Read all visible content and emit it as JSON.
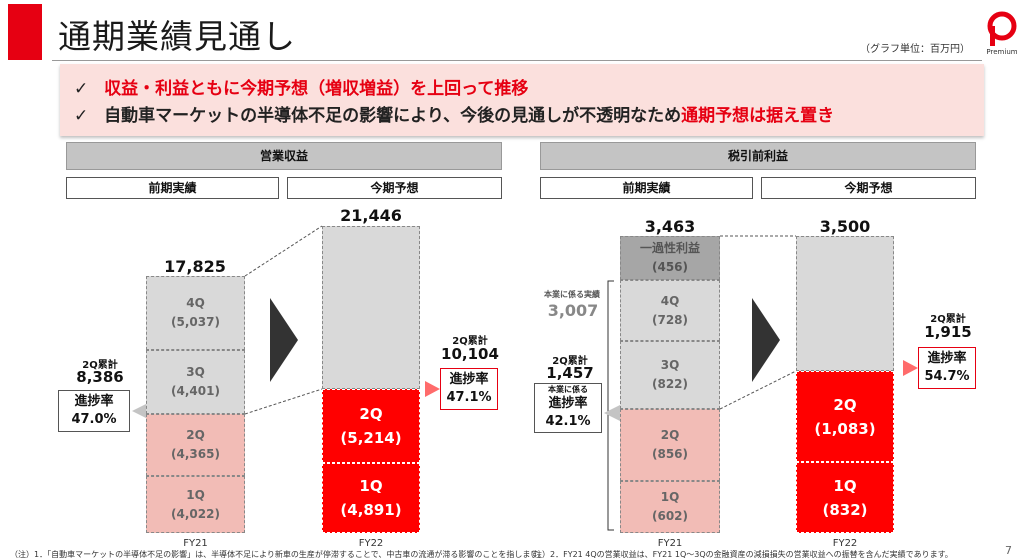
{
  "header": {
    "title": "通期業績見通し",
    "unit_note": "（グラフ単位：百万円）",
    "logo_text": "Premium"
  },
  "banner": {
    "line1_red": "収益・利益ともに今期予想（増収増益）を上回って推移",
    "line2_black": "自動車マーケットの半導体不足の影響により、今後の見通しが不透明なため",
    "line2_red": "通期予想は据え置き",
    "check": "✓"
  },
  "left_panel": {
    "section": "営業収益",
    "col_prev": "前期実績",
    "col_next": "今期予想",
    "fy21_total": "17,825",
    "fy22_total": "21,446",
    "fy21_segments": [
      {
        "q": "4Q",
        "v": "(5,037)"
      },
      {
        "q": "3Q",
        "v": "(4,401)"
      },
      {
        "q": "2Q",
        "v": "(4,365)"
      },
      {
        "q": "1Q",
        "v": "(4,022)"
      }
    ],
    "fy22_segments": [
      {
        "q": "2Q",
        "v": "(5,214)"
      },
      {
        "q": "1Q",
        "v": "(4,891)"
      }
    ],
    "fy21_cum_label": "2Q累計",
    "fy21_cum_value": "8,386",
    "fy21_progress_label": "進捗率",
    "fy21_progress": "47.0%",
    "fy22_cum_label": "2Q累計",
    "fy22_cum_value": "10,104",
    "fy22_progress_label": "進捗率",
    "fy22_progress": "47.1%",
    "fy21_label": "FY21",
    "fy22_label": "FY22"
  },
  "right_panel": {
    "section": "税引前利益",
    "col_prev": "前期実績",
    "col_next": "今期予想",
    "fy21_total": "3,463",
    "fy22_total": "3,500",
    "fy21_one_time_label": "一過性利益",
    "fy21_one_time_value": "(456)",
    "fy21_core_label": "本業に係る実績",
    "fy21_core_value": "3,007",
    "fy21_segments": [
      {
        "q": "4Q",
        "v": "(728)"
      },
      {
        "q": "3Q",
        "v": "(822)"
      },
      {
        "q": "2Q",
        "v": "(856)"
      },
      {
        "q": "1Q",
        "v": "(602)"
      }
    ],
    "fy22_segments": [
      {
        "q": "2Q",
        "v": "(1,083)"
      },
      {
        "q": "1Q",
        "v": "(832)"
      }
    ],
    "fy21_cum_label": "2Q累計",
    "fy21_cum_value": "1,457",
    "fy21_core_small": "本業に係る",
    "fy21_progress_label": "進捗率",
    "fy21_progress": "42.1%",
    "fy22_cum_label": "2Q累計",
    "fy22_cum_value": "1,915",
    "fy22_progress_label": "進捗率",
    "fy22_progress": "54.7%",
    "fy21_label": "FY21",
    "fy22_label": "FY22"
  },
  "footer": {
    "note1": "（注）1．「自動車マーケットの半導体不足の影響」は、半導体不足により新車の生産が停滞することで、中古車の流通が滞る影響のことを指します。",
    "note2": "（注）2．FY21 4Qの営業収益は、FY21 1Q～3Qの金融資産の減損損失の営業収益への振替を含んだ実績であります。",
    "page": "7"
  },
  "colors": {
    "accent_red": "#e60012",
    "bar_red": "#ff0000",
    "bar_gray": "#d9d9d9",
    "bar_pink": "#f2bcb6",
    "banner_bg": "#fbe0dd"
  }
}
